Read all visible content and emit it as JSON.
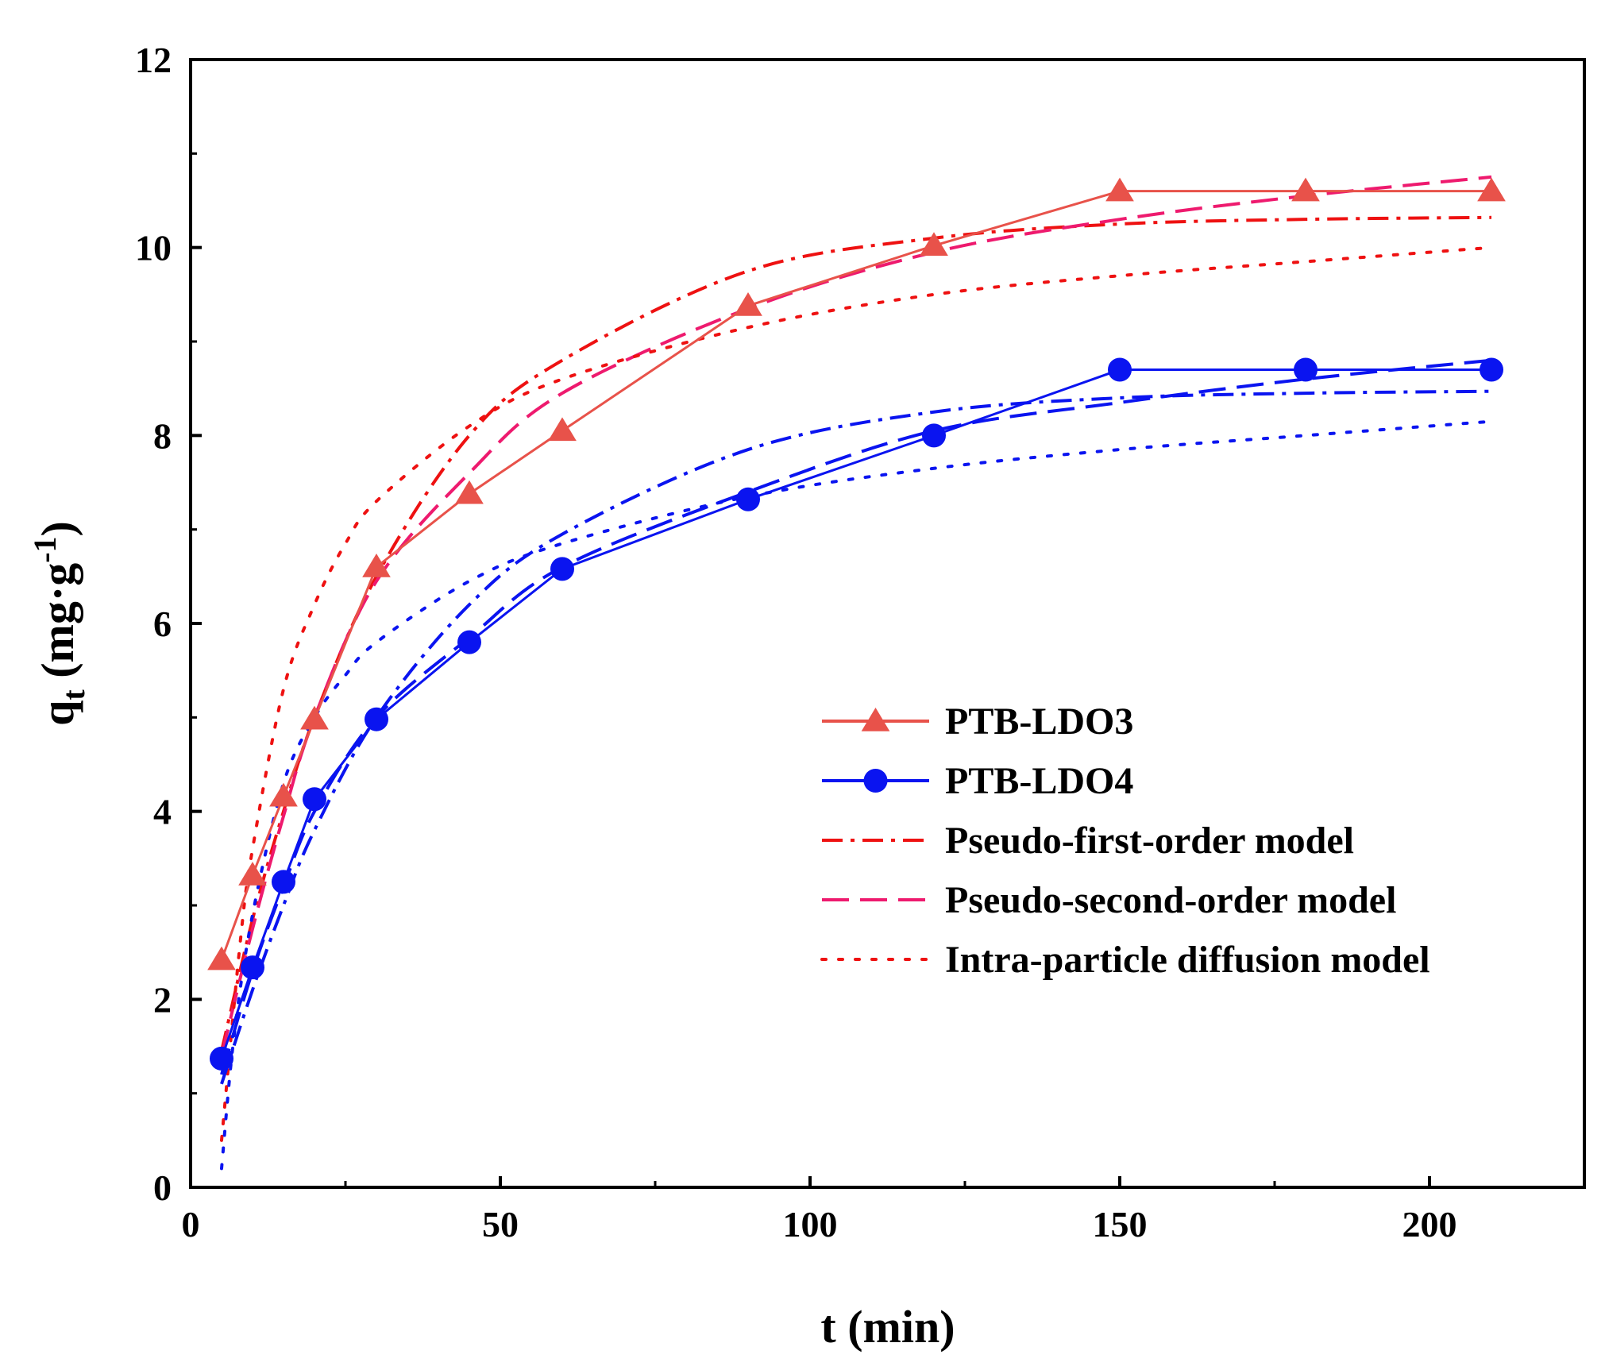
{
  "chart_data": {
    "type": "line",
    "title": "",
    "xlabel": "t (min)",
    "ylabel": {
      "main": "q",
      "sub": "t",
      "unit_pre": " (mg·g",
      "sup": "-1",
      "unit_post": ")"
    },
    "xlim": [
      0,
      225
    ],
    "ylim": [
      0,
      12
    ],
    "xticks": [
      0,
      50,
      100,
      150,
      200
    ],
    "yticks": [
      0,
      2,
      4,
      6,
      8,
      10,
      12
    ],
    "legend_position": "bottom-right",
    "legend": [
      {
        "label": "PTB-LDO3",
        "style": "solid",
        "marker": "triangle",
        "color": "#e8524a"
      },
      {
        "label": "PTB-LDO4",
        "style": "solid",
        "marker": "circle",
        "color": "#0a14f0"
      },
      {
        "label": "Pseudo-first-order model",
        "style": "dashdot",
        "marker": "none",
        "color": "#ee1111"
      },
      {
        "label": "Pseudo-second-order model",
        "style": "dash",
        "marker": "none",
        "color": "#ee1a6e"
      },
      {
        "label": "Intra-particle diffusion model",
        "style": "dot",
        "marker": "none",
        "color": "#ee1111"
      }
    ],
    "x": [
      5,
      10,
      15,
      20,
      30,
      45,
      60,
      90,
      120,
      150,
      180,
      210
    ],
    "series": [
      {
        "name": "PTB-LDO3",
        "color": "#e8524a",
        "style": "solid",
        "marker": "triangle",
        "values": [
          2.42,
          3.32,
          4.16,
          4.98,
          6.6,
          7.38,
          8.05,
          9.38,
          10.02,
          10.6,
          10.6,
          10.6
        ]
      },
      {
        "name": "PTB-LDO4",
        "color": "#0a14f0",
        "style": "solid",
        "marker": "circle",
        "values": [
          1.37,
          2.34,
          3.25,
          4.13,
          4.98,
          5.8,
          6.58,
          7.32,
          8.0,
          8.7,
          8.7,
          8.7
        ]
      }
    ],
    "model_curves": [
      {
        "name": "Pseudo-first-order model (PTB-LDO3)",
        "color": "#ee1111",
        "style": "dashdot",
        "x": [
          5,
          10,
          15,
          20,
          30,
          45,
          60,
          90,
          120,
          150,
          180,
          210
        ],
        "values": [
          1.45,
          2.85,
          4.0,
          5.0,
          6.5,
          8.0,
          8.8,
          9.75,
          10.1,
          10.25,
          10.3,
          10.32
        ]
      },
      {
        "name": "Pseudo-second-order model (PTB-LDO3)",
        "color": "#ee1a6e",
        "style": "dash",
        "x": [
          5,
          10,
          15,
          20,
          30,
          45,
          60,
          90,
          120,
          150,
          180,
          210
        ],
        "values": [
          1.4,
          2.75,
          3.95,
          5.0,
          6.45,
          7.6,
          8.45,
          9.35,
          9.95,
          10.3,
          10.55,
          10.75
        ]
      },
      {
        "name": "Intra-particle diffusion model (PTB-LDO3)",
        "color": "#ee1111",
        "style": "dot",
        "x": [
          5,
          8,
          10,
          15,
          20,
          25,
          30,
          45,
          60,
          90,
          120,
          150,
          180,
          210
        ],
        "values": [
          0.5,
          2.6,
          3.6,
          5.3,
          6.2,
          6.85,
          7.3,
          8.1,
          8.6,
          9.15,
          9.5,
          9.7,
          9.85,
          10.0
        ]
      },
      {
        "name": "Pseudo-first-order model (PTB-LDO4)",
        "color": "#0a14f0",
        "style": "dashdot",
        "x": [
          5,
          10,
          15,
          20,
          30,
          45,
          60,
          90,
          120,
          150,
          180,
          210
        ],
        "values": [
          1.1,
          2.1,
          3.0,
          3.8,
          5.0,
          6.2,
          6.95,
          7.85,
          8.25,
          8.4,
          8.45,
          8.47
        ]
      },
      {
        "name": "Pseudo-second-order model (PTB-LDO4)",
        "color": "#0a14f0",
        "style": "dash",
        "x": [
          5,
          10,
          15,
          20,
          30,
          45,
          60,
          90,
          120,
          150,
          180,
          210
        ],
        "values": [
          1.2,
          2.3,
          3.2,
          4.0,
          5.0,
          5.85,
          6.6,
          7.4,
          8.05,
          8.35,
          8.6,
          8.8
        ]
      },
      {
        "name": "Intra-particle diffusion model (PTB-LDO4)",
        "color": "#0a14f0",
        "style": "dot",
        "x": [
          5,
          7,
          10,
          15,
          20,
          25,
          30,
          45,
          60,
          90,
          120,
          150,
          180,
          210
        ],
        "values": [
          0.2,
          1.6,
          2.9,
          4.3,
          5.0,
          5.45,
          5.8,
          6.45,
          6.85,
          7.35,
          7.65,
          7.85,
          8.0,
          8.15
        ]
      }
    ]
  }
}
